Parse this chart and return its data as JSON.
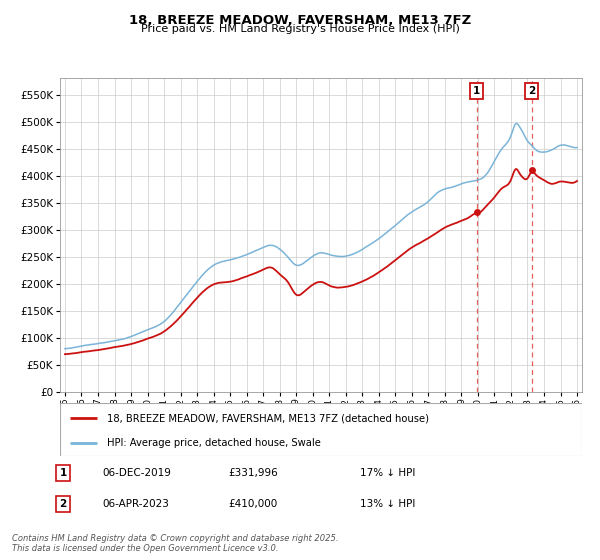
{
  "title": "18, BREEZE MEADOW, FAVERSHAM, ME13 7FZ",
  "subtitle": "Price paid vs. HM Land Registry's House Price Index (HPI)",
  "legend_line1": "18, BREEZE MEADOW, FAVERSHAM, ME13 7FZ (detached house)",
  "legend_line2": "HPI: Average price, detached house, Swale",
  "annotation1_date": "06-DEC-2019",
  "annotation1_price": "£331,996",
  "annotation1_hpi": "17% ↓ HPI",
  "annotation2_date": "06-APR-2023",
  "annotation2_price": "£410,000",
  "annotation2_hpi": "13% ↓ HPI",
  "footer": "Contains HM Land Registry data © Crown copyright and database right 2025.\nThis data is licensed under the Open Government Licence v3.0.",
  "hpi_color": "#7ab4d8",
  "property_color": "#cc1111",
  "vline_color": "#dd4444",
  "background_color": "#ffffff",
  "grid_color": "#cccccc",
  "ylim": [
    0,
    580000
  ],
  "yticks": [
    0,
    50000,
    100000,
    150000,
    200000,
    250000,
    300000,
    350000,
    400000,
    450000,
    500000,
    550000
  ],
  "xlim_start": 1994.7,
  "xlim_end": 2026.3,
  "sale1_x": 2019.92,
  "sale1_y": 331996,
  "sale2_x": 2023.25,
  "sale2_y": 410000
}
